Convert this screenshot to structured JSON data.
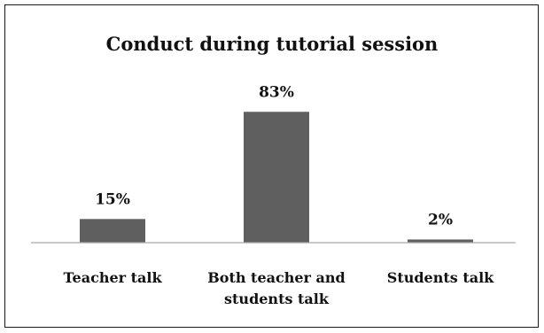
{
  "chart_data": {
    "type": "bar",
    "title": "Conduct during tutorial session",
    "categories": [
      "Teacher talk",
      "Both teacher and students talk",
      "Students talk"
    ],
    "category_lines": [
      [
        "Teacher talk"
      ],
      [
        "Both teacher and",
        "students talk"
      ],
      [
        "Students talk"
      ]
    ],
    "values": [
      15,
      83,
      2
    ],
    "data_labels": [
      "15%",
      "83%",
      "2%"
    ],
    "value_unit": "%",
    "ylim": [
      0,
      100
    ],
    "xlabel": "",
    "ylabel": "",
    "grid": false,
    "legend": "none",
    "bar_color": "#5f5f5f",
    "axis_color": "#a6a6a6"
  }
}
